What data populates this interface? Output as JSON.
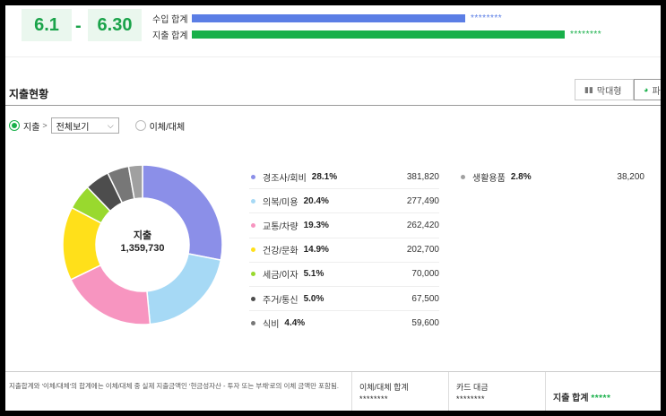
{
  "period": {
    "start": "6.1",
    "separator": "-",
    "end": "6.30"
  },
  "summary": {
    "income": {
      "label": "수입 합계",
      "value_mask": "********",
      "ratio": 0.55
    },
    "expense": {
      "label": "지출 합계",
      "value_mask": "********",
      "ratio": 0.75
    }
  },
  "section": {
    "title": "지출현황",
    "tabs": {
      "bar": "막대형",
      "pie": "파"
    }
  },
  "filter": {
    "expense_label": "지출",
    "select_value": "전체보기",
    "transfer_label": "이체/대체"
  },
  "chart_center": {
    "label": "지출",
    "total": "1,359,730"
  },
  "chart_data": {
    "type": "pie",
    "categories": [
      "경조사/회비",
      "의복/미용",
      "교통/차량",
      "건강/문화",
      "세금/이자",
      "주거/통신",
      "식비",
      "생활용품"
    ],
    "values": [
      381820,
      277490,
      262420,
      202700,
      70000,
      67500,
      59600,
      38200
    ],
    "percents": [
      "28.1%",
      "20.4%",
      "19.3%",
      "14.9%",
      "5.1%",
      "5.0%",
      "4.4%",
      "2.8%"
    ],
    "amount_labels": [
      "381,820",
      "277,490",
      "262,420",
      "202,700",
      "70,000",
      "67,500",
      "59,600",
      "38,200"
    ],
    "colors": [
      "#8b8fe8",
      "#a6d9f5",
      "#f795c0",
      "#ffe01a",
      "#99d92e",
      "#4d4d4d",
      "#777777",
      "#a0a0a0"
    ],
    "title": "",
    "legend_position": "right"
  },
  "footer": {
    "note": "지출합계와 '이체/대체'의 합계에는 이체/대체 중 실제 지출금액인 '현금성자산 - 투자 또는 부채'로의 이체 금액만 포함됨.",
    "transfer_total": {
      "label": "이체/대체 합계",
      "mask": "********"
    },
    "card_payment": {
      "label": "카드 대금",
      "mask": "********"
    },
    "expense_total": {
      "label": "지출 합계",
      "mask": "*****"
    }
  }
}
